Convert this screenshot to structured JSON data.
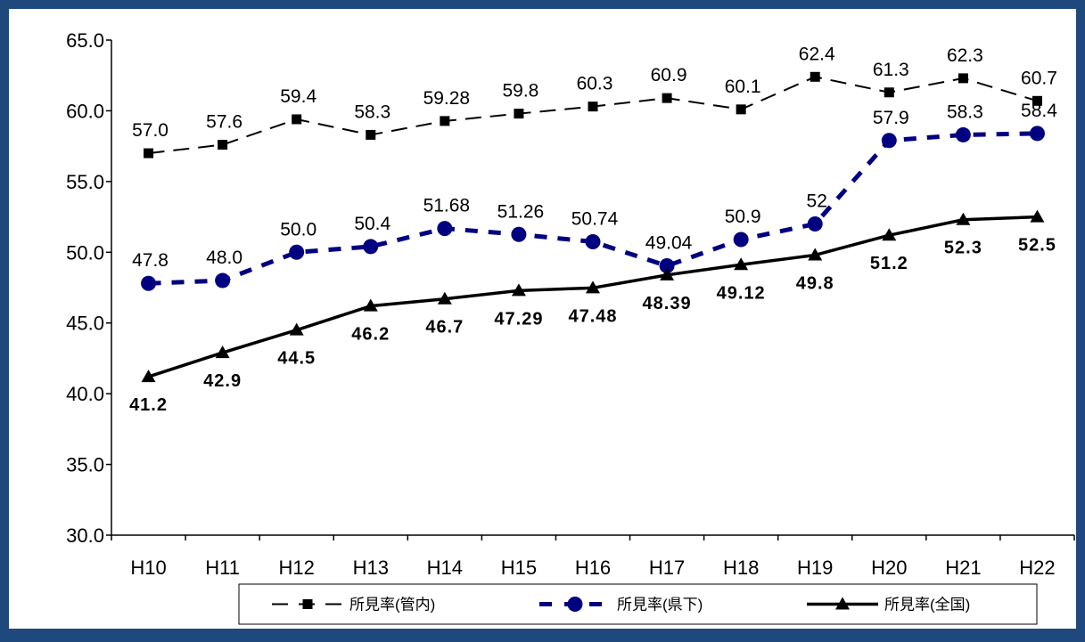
{
  "chart_data": {
    "type": "line",
    "title": "",
    "xlabel": "",
    "ylabel": "",
    "categories": [
      "H10",
      "H11",
      "H12",
      "H13",
      "H14",
      "H15",
      "H16",
      "H17",
      "H18",
      "H19",
      "H20",
      "H21",
      "H22"
    ],
    "ylim": [
      30.0,
      65.0
    ],
    "yticks": [
      "30.0",
      "35.0",
      "40.0",
      "45.0",
      "50.0",
      "55.0",
      "60.0",
      "65.0"
    ],
    "grid": false,
    "legend_position": "bottom",
    "series": [
      {
        "name": "所見率(管内)",
        "style": "dashed-thin",
        "marker": "square",
        "color": "#000000",
        "values": [
          57.0,
          57.6,
          59.4,
          58.3,
          59.28,
          59.8,
          60.3,
          60.9,
          60.1,
          62.4,
          61.3,
          62.3,
          60.7
        ],
        "labels": [
          "57.0",
          "57.6",
          "59.4",
          "58.3",
          "59.28",
          "59.8",
          "60.3",
          "60.9",
          "60.1",
          "62.4",
          "61.3",
          "62.3",
          "60.7"
        ]
      },
      {
        "name": "所見率(県下)",
        "style": "dashed-thick",
        "marker": "circle",
        "color": "#000080",
        "values": [
          47.8,
          48.0,
          50.0,
          50.4,
          51.68,
          51.26,
          50.74,
          49.04,
          50.9,
          52.0,
          57.9,
          58.3,
          58.4
        ],
        "labels": [
          "47.8",
          "48.0",
          "50.0",
          "50.4",
          "51.68",
          "51.26",
          "50.74",
          "49.04",
          "50.9",
          "52",
          "57.9",
          "58.3",
          "58.4"
        ]
      },
      {
        "name": "所見率(全国)",
        "style": "solid",
        "marker": "triangle",
        "color": "#000000",
        "values": [
          41.2,
          42.9,
          44.5,
          46.2,
          46.7,
          47.29,
          47.48,
          48.39,
          49.12,
          49.8,
          51.2,
          52.3,
          52.5
        ],
        "labels": [
          "41.2",
          "42.9",
          "44.5",
          "46.2",
          "46.7",
          "47.29",
          "47.48",
          "48.39",
          "49.12",
          "49.8",
          "51.2",
          "52.3",
          "52.5"
        ]
      }
    ]
  }
}
